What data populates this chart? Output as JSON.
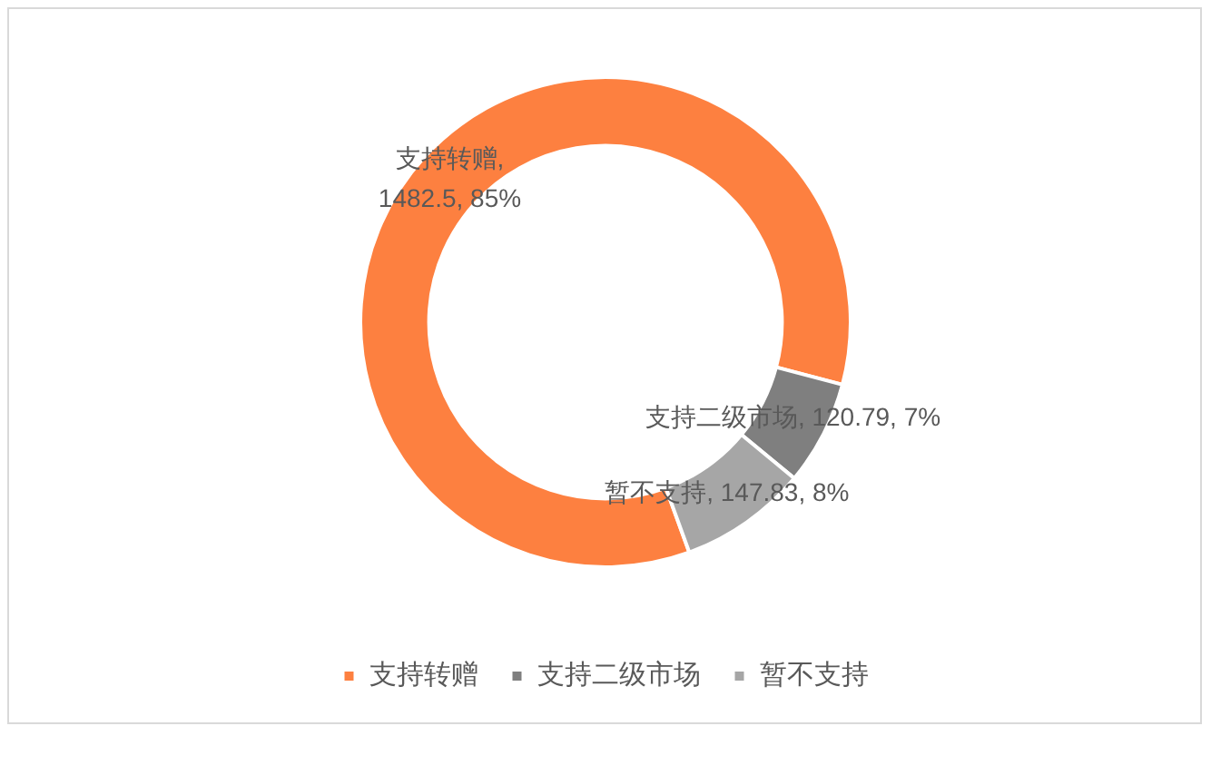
{
  "chart_data": {
    "type": "donut",
    "categories": [
      "支持转赠",
      "支持二级市场",
      "暂不支持"
    ],
    "values": [
      1482.5,
      120.79,
      147.83
    ],
    "colors": [
      "#fd8040",
      "#7f7f7f",
      "#a6a6a6"
    ],
    "value_labels": [
      "支持转赠, 1482.5, 85%",
      "支持二级市场, 120.79, 7%",
      "暂不支持, 147.83, 8%"
    ],
    "legend": "bottom"
  }
}
